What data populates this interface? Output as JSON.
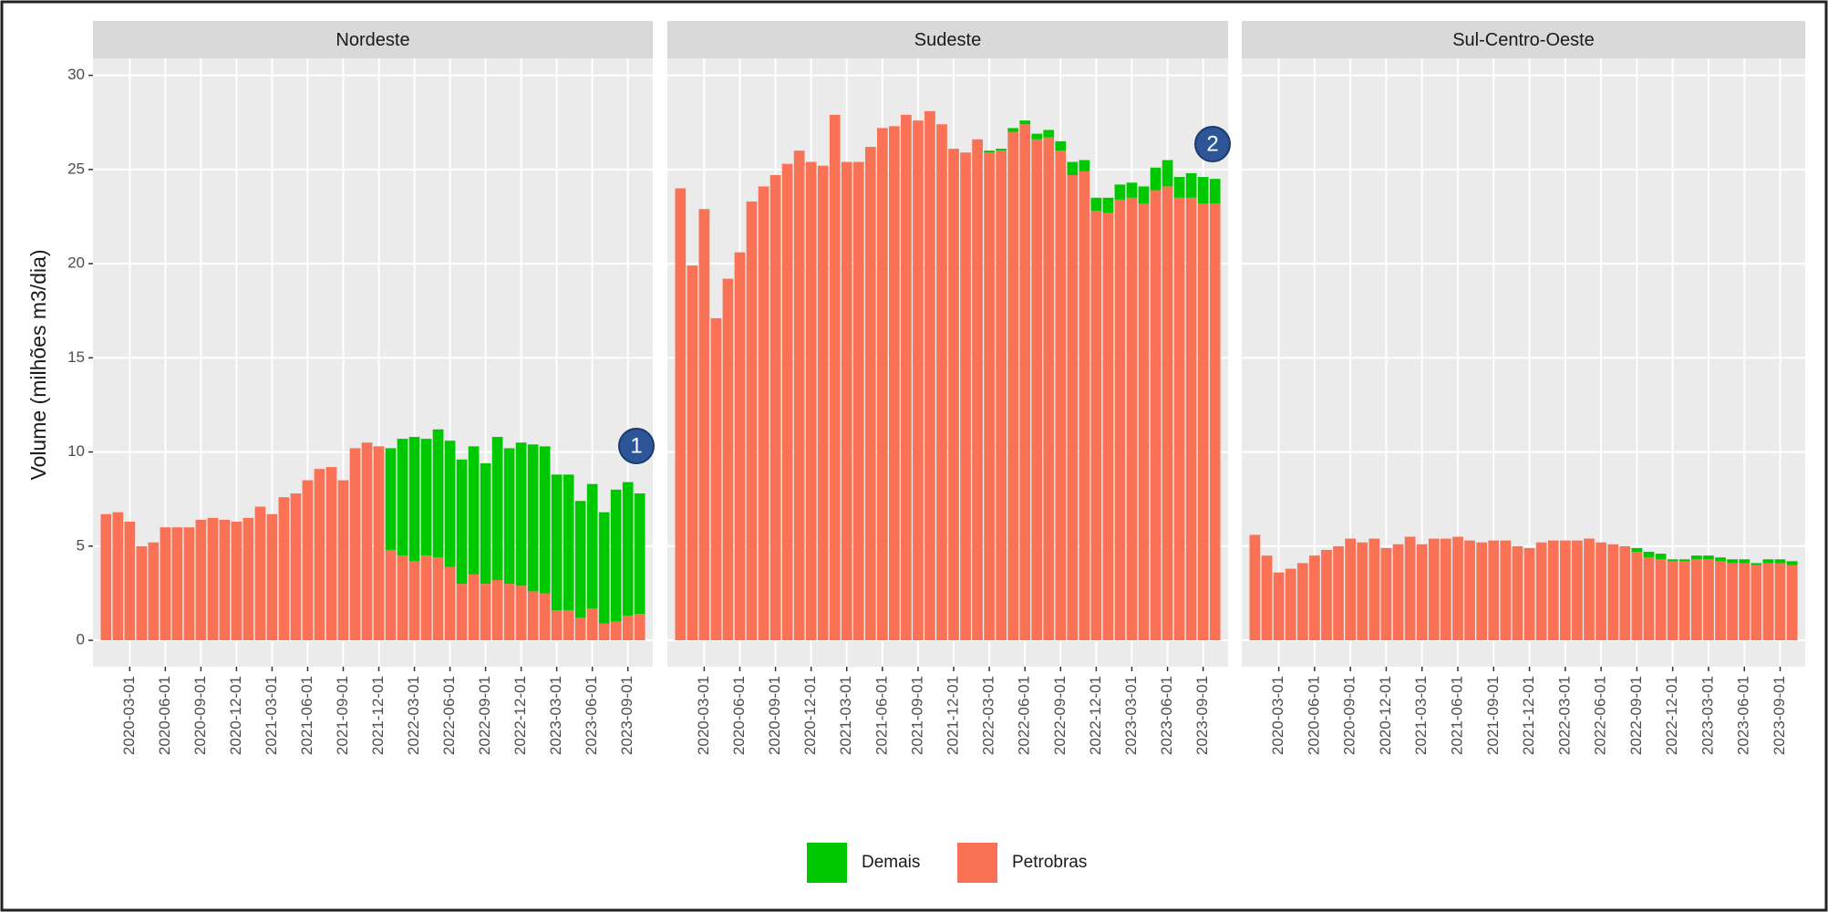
{
  "chart_data": {
    "type": "bar",
    "stacked": true,
    "ylabel": "Volume (milhões m3/dia)",
    "categories": [
      null,
      null,
      "2020-03-01",
      null,
      null,
      "2020-06-01",
      null,
      null,
      "2020-09-01",
      null,
      null,
      "2020-12-01",
      null,
      null,
      "2021-03-01",
      null,
      null,
      "2021-06-01",
      null,
      null,
      "2021-09-01",
      null,
      null,
      "2021-12-01",
      null,
      null,
      "2022-03-01",
      null,
      null,
      "2022-06-01",
      null,
      null,
      "2022-09-01",
      null,
      null,
      "2022-12-01",
      null,
      null,
      "2023-03-01",
      null,
      null,
      "2023-06-01",
      null,
      null,
      "2023-09-01",
      null
    ],
    "ylim": [
      -1.4,
      30.9
    ],
    "yticks": [
      0,
      5,
      10,
      15,
      20,
      25,
      30
    ],
    "grid": true,
    "legend": "bottom",
    "series": [
      {
        "name": "Demais",
        "color": "#00c800"
      },
      {
        "name": "Petrobras",
        "color": "#fa7256"
      }
    ],
    "facets": [
      {
        "title": "Nordeste",
        "series": [
          {
            "values": [
              0,
              0,
              0,
              0,
              0,
              0,
              0,
              0,
              0,
              0,
              0,
              0,
              0,
              0,
              0,
              0,
              0,
              0,
              0,
              0,
              0,
              0,
              0,
              0,
              5.4,
              6.2,
              6.6,
              6.2,
              6.8,
              6.7,
              6.6,
              6.8,
              6.4,
              7.6,
              7.2,
              7.6,
              7.8,
              7.8,
              7.2,
              7.2,
              6.2,
              6.6,
              5.9,
              7.0,
              7.1,
              6.4
            ]
          },
          {
            "values": [
              6.7,
              6.8,
              6.3,
              5.0,
              5.2,
              6.0,
              6.0,
              6.0,
              6.4,
              6.5,
              6.4,
              6.3,
              6.5,
              7.1,
              6.7,
              7.6,
              7.8,
              8.5,
              9.1,
              9.2,
              8.5,
              10.2,
              10.5,
              10.3,
              4.8,
              4.5,
              4.2,
              4.5,
              4.4,
              3.9,
              3.0,
              3.5,
              3.0,
              3.2,
              3.0,
              2.9,
              2.6,
              2.5,
              1.6,
              1.6,
              1.2,
              1.7,
              0.9,
              1.0,
              1.3,
              1.4
            ]
          }
        ]
      },
      {
        "title": "Sudeste",
        "series": [
          {
            "values": [
              0,
              0,
              0,
              0,
              0,
              0,
              0,
              0,
              0,
              0,
              0,
              0,
              0,
              0,
              0,
              0,
              0,
              0,
              0,
              0,
              0,
              0,
              0,
              0,
              0,
              0,
              0.1,
              0.1,
              0.2,
              0.2,
              0.3,
              0.4,
              0.5,
              0.7,
              0.6,
              0.7,
              0.8,
              0.8,
              0.8,
              0.9,
              1.2,
              1.4,
              1.1,
              1.3,
              1.4,
              1.3
            ]
          },
          {
            "values": [
              24.0,
              19.9,
              22.9,
              17.1,
              19.2,
              20.6,
              23.3,
              24.1,
              24.7,
              25.3,
              26.0,
              25.4,
              25.2,
              27.9,
              25.4,
              25.4,
              26.2,
              27.2,
              27.3,
              27.9,
              27.6,
              28.1,
              27.4,
              26.1,
              25.9,
              26.6,
              25.9,
              26.0,
              27.0,
              27.4,
              26.6,
              26.7,
              26.0,
              24.7,
              24.9,
              22.8,
              22.7,
              23.4,
              23.5,
              23.2,
              23.9,
              24.1,
              23.5,
              23.5,
              23.2,
              23.2
            ]
          }
        ]
      },
      {
        "title": "Sul-Centro-Oeste",
        "series": [
          {
            "values": [
              0,
              0,
              0,
              0,
              0,
              0,
              0,
              0,
              0,
              0,
              0,
              0,
              0,
              0,
              0,
              0,
              0,
              0,
              0,
              0,
              0,
              0,
              0,
              0,
              0,
              0,
              0,
              0,
              0,
              0,
              0,
              0,
              0.2,
              0.3,
              0.3,
              0.1,
              0.1,
              0.2,
              0.2,
              0.2,
              0.2,
              0.2,
              0.1,
              0.2,
              0.2,
              0.2
            ]
          },
          {
            "values": [
              5.6,
              4.5,
              3.6,
              3.8,
              4.1,
              4.5,
              4.8,
              5.0,
              5.4,
              5.2,
              5.4,
              4.9,
              5.1,
              5.5,
              5.1,
              5.4,
              5.4,
              5.5,
              5.3,
              5.2,
              5.3,
              5.3,
              5.0,
              4.9,
              5.2,
              5.3,
              5.3,
              5.3,
              5.4,
              5.2,
              5.1,
              5.0,
              4.7,
              4.4,
              4.3,
              4.2,
              4.2,
              4.3,
              4.3,
              4.2,
              4.1,
              4.1,
              4.0,
              4.1,
              4.1,
              4.0
            ]
          }
        ]
      }
    ],
    "annotations": [
      "1",
      "2"
    ]
  }
}
